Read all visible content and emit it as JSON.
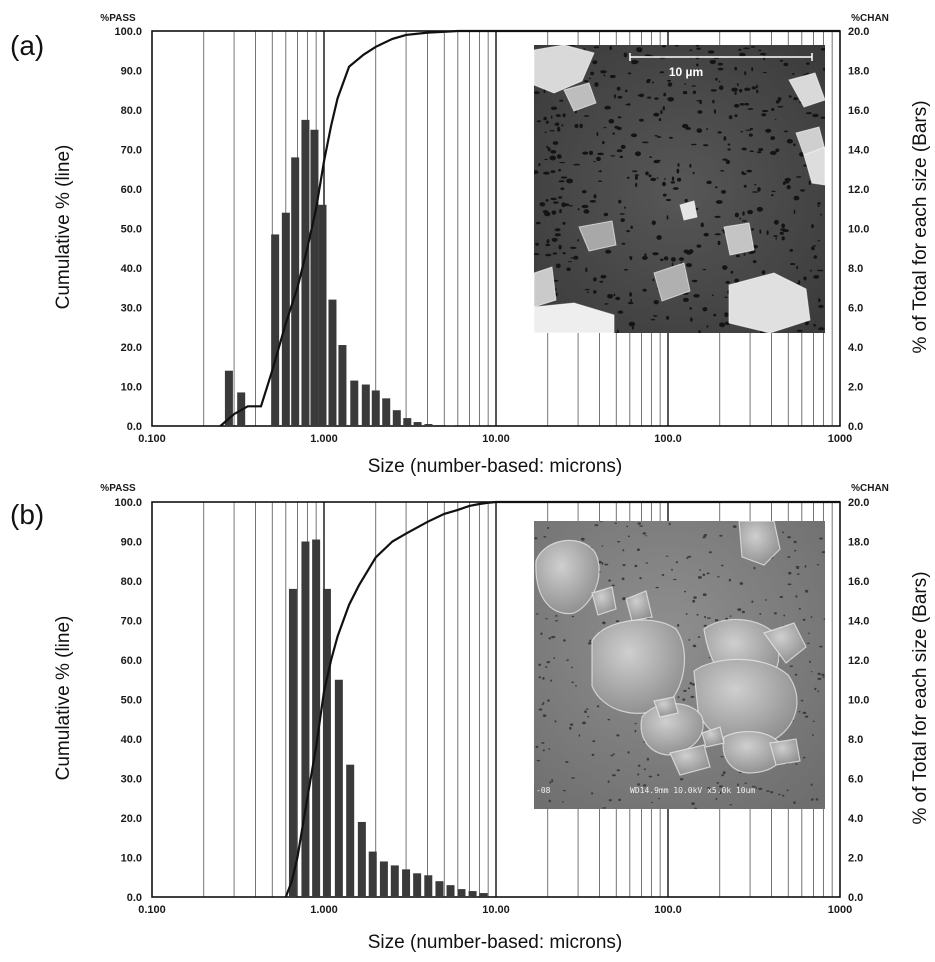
{
  "panels": [
    {
      "panel_label": "(a)",
      "left_header": "%PASS",
      "right_header": "%CHAN",
      "ylabel_left": "Cumulative  % (line)",
      "ylabel_right": "% of Total for each size (Bars)",
      "xlabel": "Size (number-based: microns)",
      "micrograph_scale_label": "10 µm",
      "micrograph_caption": ""
    },
    {
      "panel_label": "(b)",
      "left_header": "%PASS",
      "right_header": "%CHAN",
      "ylabel_left": "Cumulative  % (line)",
      "ylabel_right": "% of Total for each size (Bars)",
      "xlabel": "Size (number-based: microns)",
      "micrograph_scale_label": "",
      "micrograph_caption": "WD14.9mm 10.0kV x5.0k  10um"
    }
  ],
  "chart_data": [
    {
      "type": "bar",
      "x_scale": "log",
      "xlim": [
        0.1,
        1000
      ],
      "x_ticks": [
        "0.100",
        "1.000",
        "10.00",
        "100.0",
        "1000"
      ],
      "left_y_ticks": [
        "0.0",
        "10.0",
        "20.0",
        "30.0",
        "40.0",
        "50.0",
        "60.0",
        "70.0",
        "80.0",
        "90.0",
        "100.0"
      ],
      "right_y_ticks": [
        "0.0",
        "2.0",
        "4.0",
        "6.0",
        "8.0",
        "10.0",
        "12.0",
        "14.0",
        "16.0",
        "18.0",
        "20.0"
      ],
      "ylim_left": [
        0,
        100
      ],
      "ylim_right": [
        0,
        20
      ],
      "grid": true,
      "bars": {
        "x": [
          0.28,
          0.33,
          0.52,
          0.6,
          0.68,
          0.78,
          0.88,
          0.98,
          1.12,
          1.28,
          1.5,
          1.75,
          2.0,
          2.3,
          2.65,
          3.05,
          3.5,
          4.05,
          4.65,
          5.4
        ],
        "values": [
          2.8,
          1.7,
          9.7,
          10.8,
          13.6,
          15.5,
          15.0,
          11.2,
          6.4,
          4.1,
          2.3,
          2.1,
          1.8,
          1.4,
          0.8,
          0.4,
          0.2,
          0.1,
          0.05,
          0.02
        ]
      },
      "line": {
        "x": [
          0.25,
          0.3,
          0.36,
          0.43,
          0.5,
          0.6,
          0.7,
          0.8,
          0.9,
          1.0,
          1.1,
          1.2,
          1.4,
          1.7,
          2.0,
          2.5,
          3.0,
          4.0,
          5.0,
          6.0,
          7.0,
          1000
        ],
        "values": [
          0,
          3,
          5,
          5,
          14,
          26,
          35,
          45,
          55,
          67,
          76,
          83,
          91,
          94,
          96,
          98,
          99,
          99.6,
          99.8,
          100,
          100,
          100
        ]
      }
    },
    {
      "type": "bar",
      "x_scale": "log",
      "xlim": [
        0.1,
        1000
      ],
      "x_ticks": [
        "0.100",
        "1.000",
        "10.00",
        "100.0",
        "1000"
      ],
      "left_y_ticks": [
        "0.0",
        "10.0",
        "20.0",
        "30.0",
        "40.0",
        "50.0",
        "60.0",
        "70.0",
        "80.0",
        "90.0",
        "100.0"
      ],
      "right_y_ticks": [
        "0.0",
        "2.0",
        "4.0",
        "6.0",
        "8.0",
        "10.0",
        "12.0",
        "14.0",
        "16.0",
        "18.0",
        "20.0"
      ],
      "ylim_left": [
        0,
        100
      ],
      "ylim_right": [
        0,
        20
      ],
      "grid": true,
      "bars": {
        "x": [
          0.66,
          0.78,
          0.9,
          1.04,
          1.22,
          1.42,
          1.66,
          1.92,
          2.23,
          2.58,
          3.0,
          3.48,
          4.04,
          4.69,
          5.44,
          6.3,
          7.31,
          8.48
        ],
        "values": [
          15.6,
          18.0,
          18.1,
          15.6,
          11.0,
          6.7,
          3.8,
          2.3,
          1.8,
          1.6,
          1.4,
          1.2,
          1.1,
          0.8,
          0.6,
          0.4,
          0.3,
          0.2
        ]
      },
      "line": {
        "x": [
          0.6,
          0.65,
          0.7,
          0.8,
          0.9,
          1.0,
          1.1,
          1.2,
          1.4,
          1.6,
          2.0,
          2.5,
          3.0,
          4.0,
          5.0,
          6.0,
          7.0,
          8.0,
          9.0,
          10.0,
          1000
        ],
        "values": [
          0,
          4,
          10,
          25,
          38,
          52,
          60,
          66,
          74,
          79,
          86,
          90,
          92,
          95,
          97,
          98,
          99,
          99.5,
          99.8,
          100,
          100
        ]
      }
    }
  ]
}
